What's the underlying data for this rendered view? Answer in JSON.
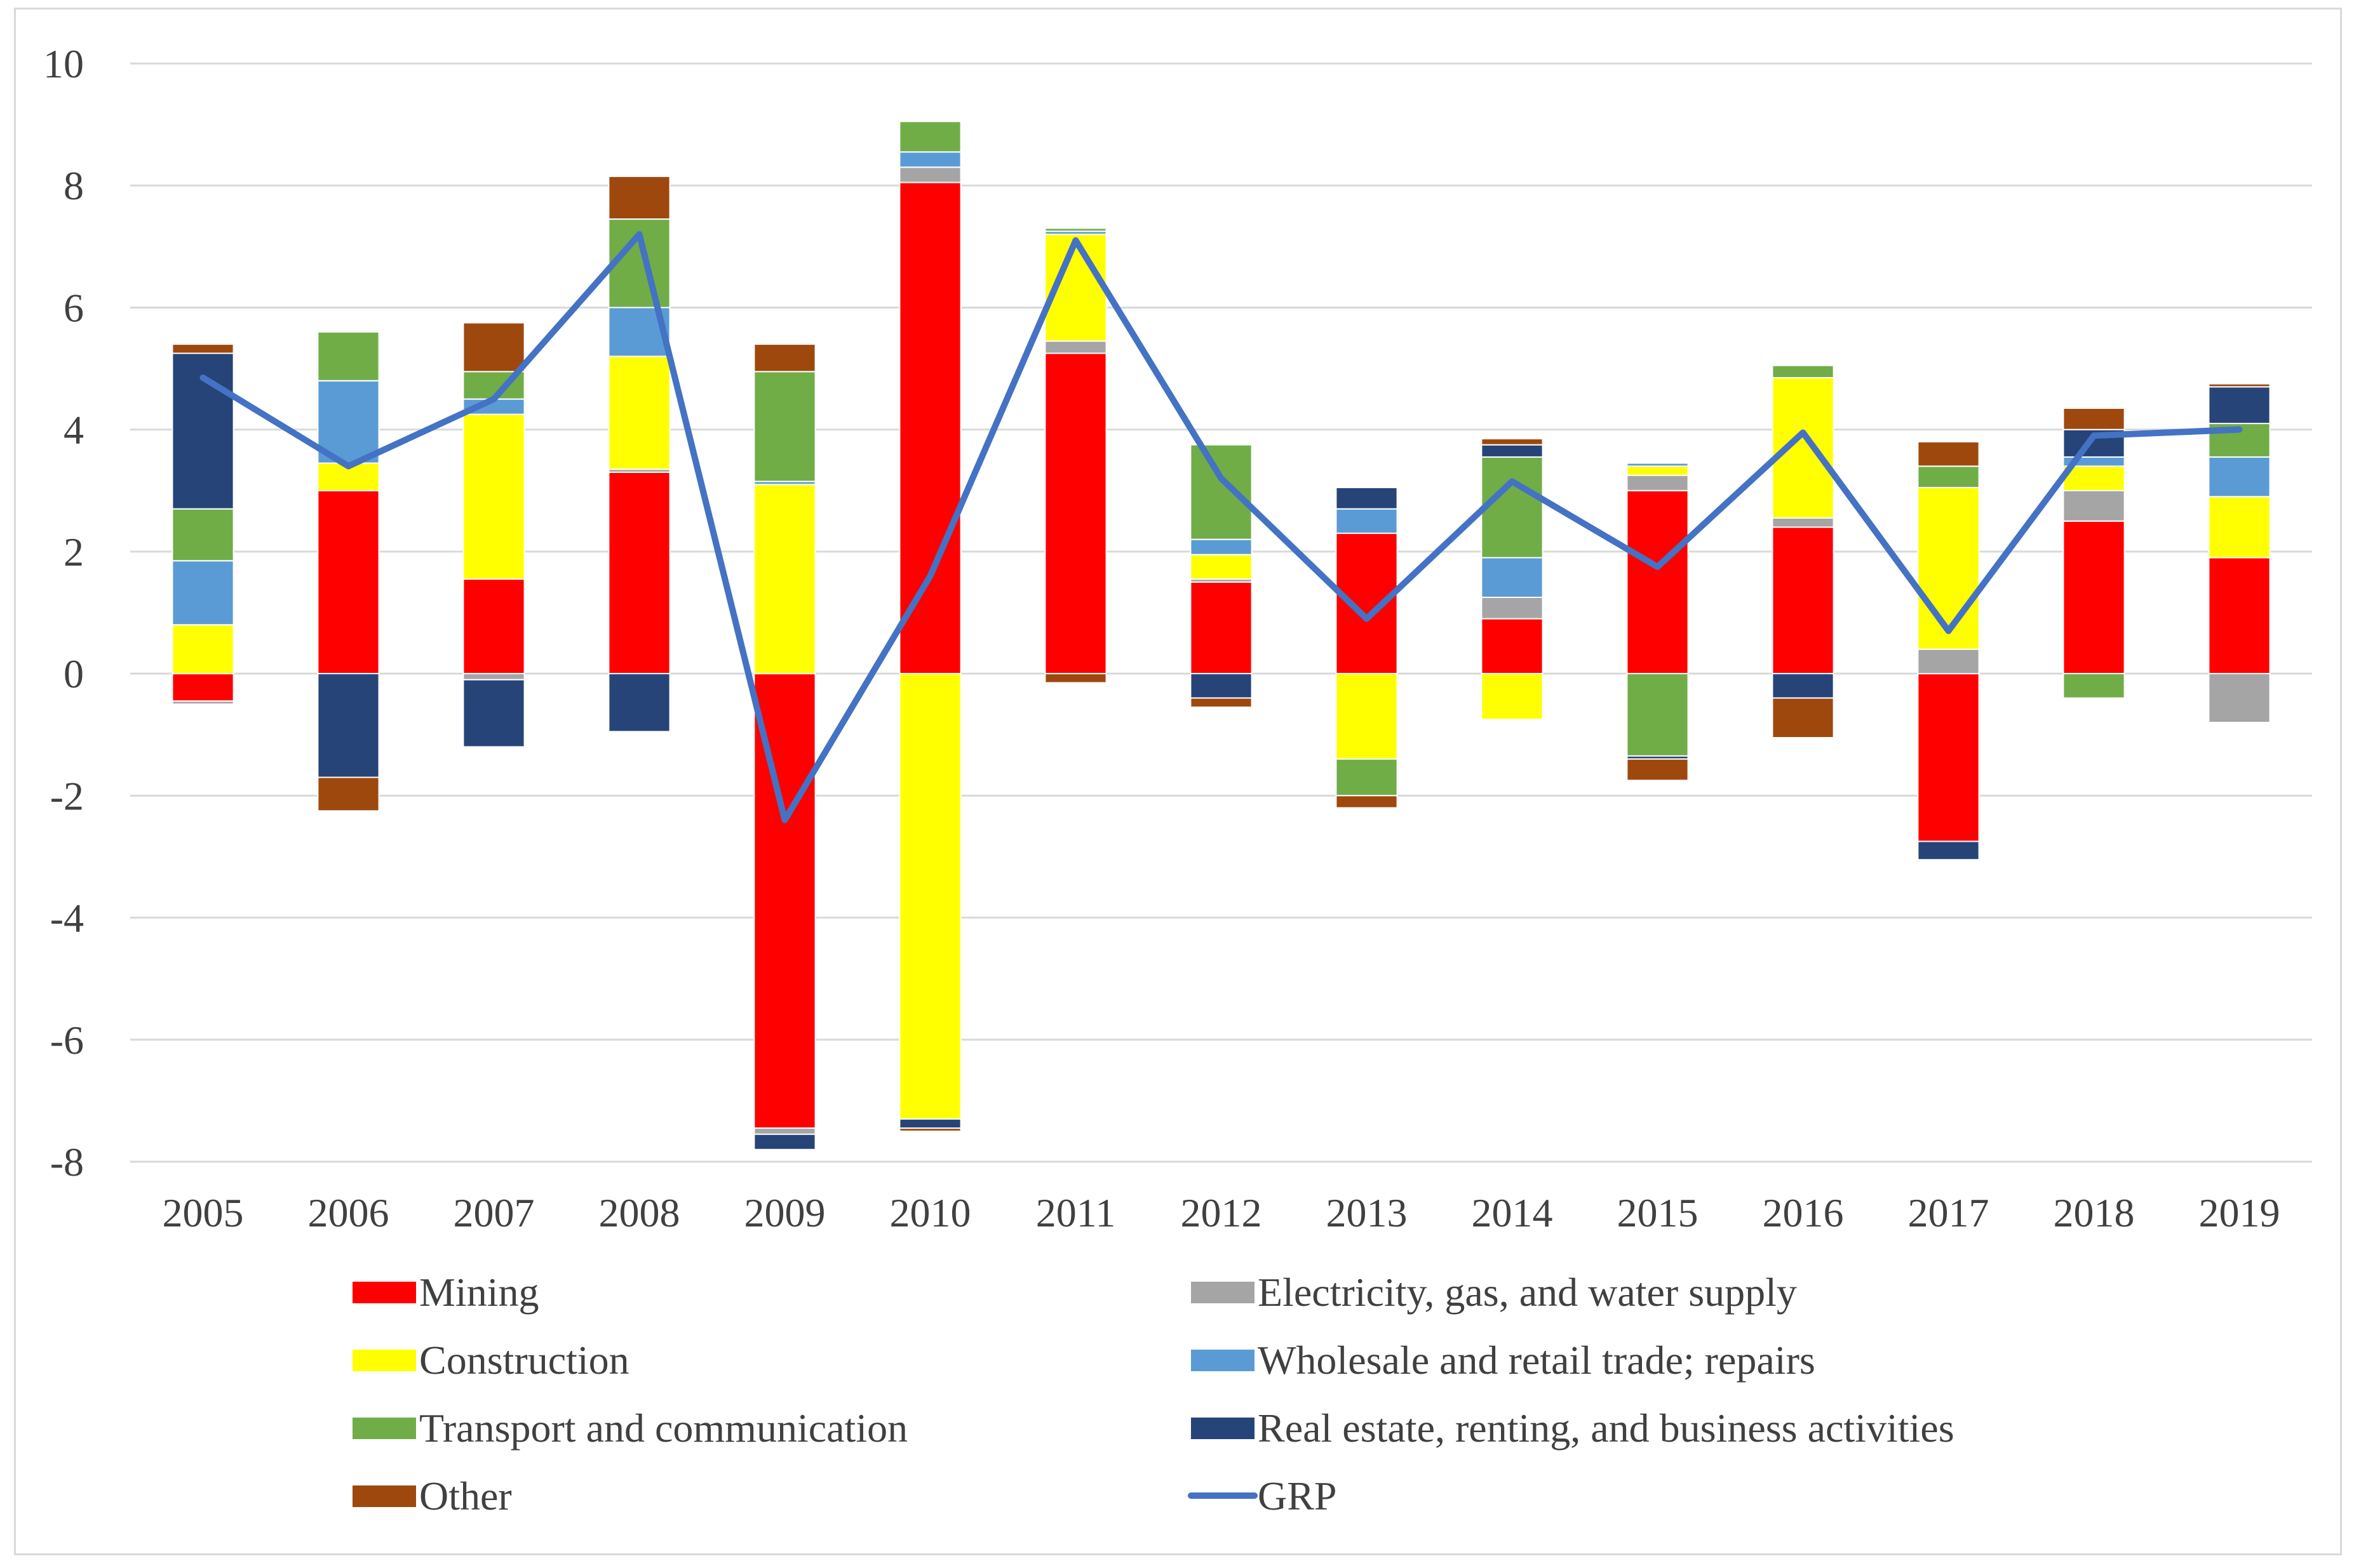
{
  "chart_data": {
    "type": "bar",
    "stacked": true,
    "categories": [
      "2005",
      "2006",
      "2007",
      "2008",
      "2009",
      "2010",
      "2011",
      "2012",
      "2013",
      "2014",
      "2015",
      "2016",
      "2017",
      "2018",
      "2019"
    ],
    "ylim": [
      -8,
      10
    ],
    "yticks": [
      -8,
      -6,
      -4,
      -2,
      0,
      2,
      4,
      6,
      8,
      10
    ],
    "grid": true,
    "legend_position": "bottom",
    "series": [
      {
        "name": "Mining",
        "color": "#ff0000",
        "values": [
          -0.45,
          3.0,
          1.55,
          3.3,
          -7.45,
          8.05,
          5.25,
          1.5,
          2.3,
          0.9,
          3.0,
          2.4,
          -2.75,
          2.5,
          1.9
        ]
      },
      {
        "name": "Electricity, gas, and water supply",
        "color": "#a5a5a5",
        "values": [
          -0.05,
          0.0,
          -0.1,
          0.05,
          -0.1,
          0.25,
          0.2,
          0.05,
          0.0,
          0.35,
          0.25,
          0.15,
          0.4,
          0.5,
          -0.8
        ]
      },
      {
        "name": "Construction",
        "color": "#ffff00",
        "values": [
          0.8,
          0.45,
          2.7,
          1.85,
          3.1,
          -7.3,
          1.75,
          0.4,
          -1.4,
          -0.75,
          0.15,
          2.3,
          2.65,
          0.4,
          1.0
        ]
      },
      {
        "name": "Wholesale and retail trade; repairs",
        "color": "#5b9bd5",
        "values": [
          1.05,
          1.35,
          0.25,
          0.8,
          0.05,
          0.25,
          0.05,
          0.25,
          0.4,
          0.65,
          0.05,
          0.0,
          0.0,
          0.15,
          0.65
        ]
      },
      {
        "name": "Transport and communication",
        "color": "#70ad47",
        "values": [
          0.85,
          0.8,
          0.45,
          1.45,
          1.8,
          0.5,
          0.05,
          1.55,
          -0.6,
          1.65,
          -1.35,
          0.2,
          0.35,
          -0.4,
          0.55
        ]
      },
      {
        "name": "Real estate, renting, and business activities",
        "color": "#264478",
        "values": [
          2.55,
          -1.7,
          -1.1,
          -0.95,
          -0.25,
          -0.15,
          0.0,
          -0.4,
          0.35,
          0.2,
          -0.05,
          -0.4,
          -0.3,
          0.45,
          0.6
        ]
      },
      {
        "name": "Other",
        "color": "#9e480e",
        "values": [
          0.15,
          -0.55,
          0.8,
          0.7,
          0.45,
          -0.05,
          -0.15,
          -0.15,
          -0.2,
          0.1,
          -0.35,
          -0.65,
          0.4,
          0.35,
          0.05
        ]
      }
    ],
    "line": {
      "name": "GRP",
      "color": "#4472c4",
      "values": [
        4.85,
        3.4,
        4.5,
        7.2,
        -2.4,
        1.6,
        7.1,
        3.2,
        0.9,
        3.15,
        1.75,
        3.95,
        0.7,
        3.9,
        4.0
      ]
    }
  }
}
